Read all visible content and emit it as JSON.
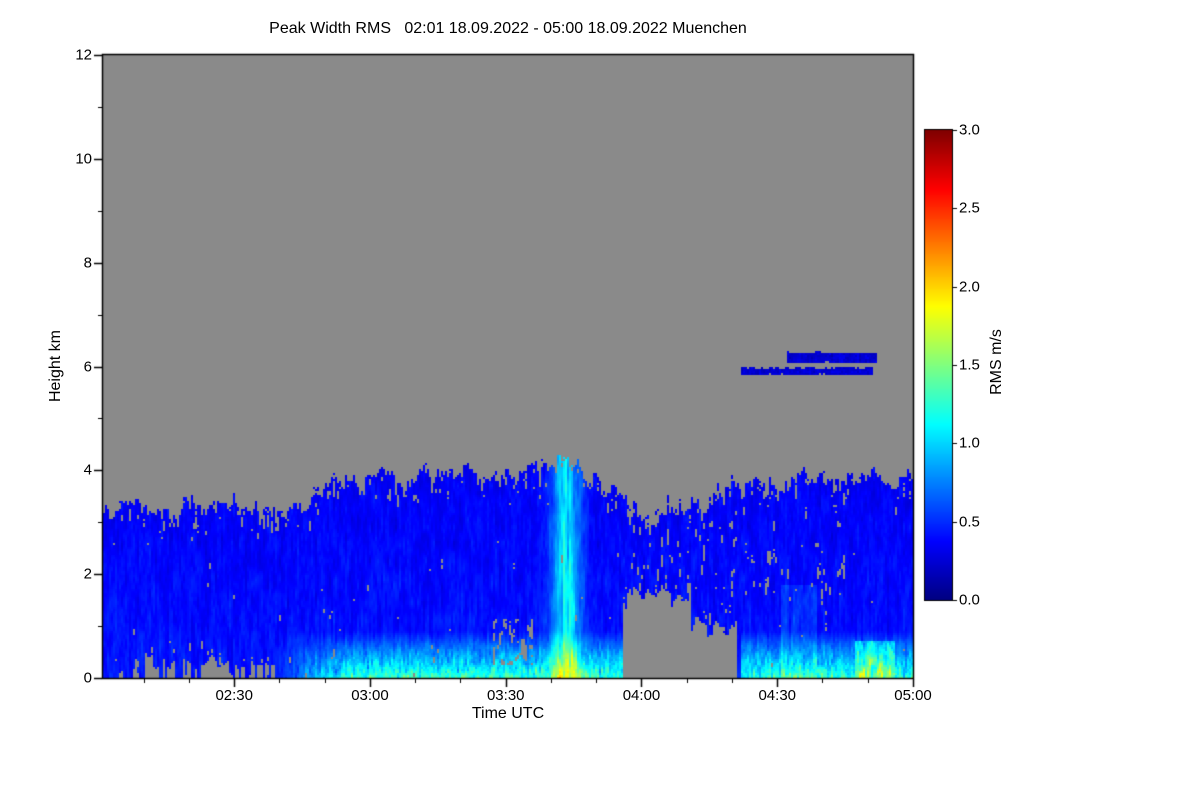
{
  "chart_data": {
    "type": "heatmap",
    "title": "Peak Width RMS   02:01 18.09.2022 - 05:00 18.09.2022 Muenchen",
    "quantity": "Peak Width RMS",
    "time_start": "02:01 18.09.2022",
    "time_end": "05:00 18.09.2022",
    "station": "Muenchen",
    "xlabel": "Time UTC",
    "ylabel": "Height km",
    "x_range_minutes": [
      121,
      300
    ],
    "x_ticks": [
      {
        "label": "02:30",
        "minutes": 150
      },
      {
        "label": "03:00",
        "minutes": 180
      },
      {
        "label": "03:30",
        "minutes": 210
      },
      {
        "label": "04:00",
        "minutes": 240
      },
      {
        "label": "04:30",
        "minutes": 270
      },
      {
        "label": "05:00",
        "minutes": 300
      }
    ],
    "ylim": [
      0,
      12
    ],
    "y_ticks": [
      "0",
      "2",
      "4",
      "6",
      "8",
      "10",
      "12"
    ],
    "plot_background": "#8a8a8a",
    "no_data_color": "#8a8a8a",
    "colormap": "jet",
    "colorbar": {
      "label": "RMS m/s",
      "min": 0,
      "max": 3,
      "ticks": [
        "0.0",
        "0.5",
        "1.0",
        "1.5",
        "2.0",
        "2.5",
        "3.0"
      ]
    },
    "features": {
      "boundary_layer": {
        "description": "Continuous echo layer from near the surface up to 3.2-4.1 km over the whole period; RMS mostly 0.2-0.5 m/s (blue) with cyan streaks of 0.8-1.4 m/s below ~0.9 km and in vertical plumes near 03:40-03:48; sparse coverage below 0.9 km before 02:40; large gray data gap below ~2 km between 04:00 and 04:20; bright green-yellow spot near surface around 04:50",
        "top_profile": [
          [
            121,
            3.3
          ],
          [
            158,
            3.3
          ],
          [
            185,
            3.95
          ],
          [
            222,
            4.05
          ],
          [
            232,
            3.7
          ],
          [
            241,
            3.35
          ],
          [
            250,
            3.4
          ],
          [
            257,
            3.75
          ],
          [
            300,
            3.95
          ]
        ],
        "typical_rms_ms": 0.3,
        "surface_band_rms_ms": 1.1
      },
      "elevated_cloud": {
        "description": "Thin dark-blue layer near 5.9-6.3 km between about 04:20 and 04:52, RMS ~0.1-0.4 m/s",
        "time_minutes": [
          262,
          292
        ],
        "height_km": [
          5.75,
          6.35
        ],
        "typical_rms_ms": 0.2
      }
    }
  }
}
